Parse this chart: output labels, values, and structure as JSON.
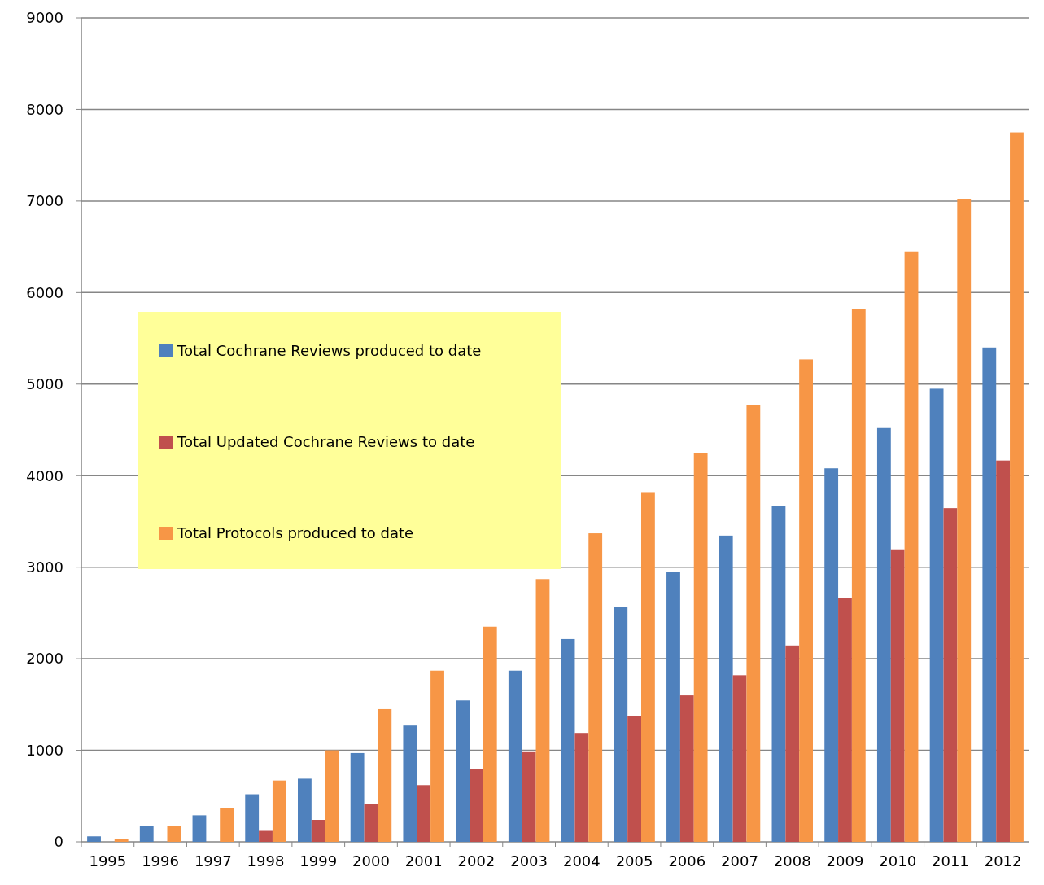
{
  "chart_data": {
    "type": "bar",
    "categories": [
      "1995",
      "1996",
      "1997",
      "1998",
      "1999",
      "2000",
      "2001",
      "2002",
      "2003",
      "2004",
      "2005",
      "2006",
      "2007",
      "2008",
      "2009",
      "2010",
      "2011",
      "2012"
    ],
    "series": [
      {
        "name": "Total Cochrane Reviews produced to date",
        "color": "#4f81bd",
        "values": [
          60,
          170,
          290,
          520,
          690,
          970,
          1270,
          1545,
          1870,
          2215,
          2570,
          2950,
          3345,
          3670,
          4080,
          4520,
          4950,
          5400
        ]
      },
      {
        "name": "Total Updated Cochrane Reviews to date",
        "color": "#c0504d",
        "values": [
          0,
          0,
          0,
          120,
          240,
          415,
          620,
          795,
          980,
          1190,
          1370,
          1600,
          1820,
          2145,
          2665,
          3195,
          3645,
          4165
        ]
      },
      {
        "name": "Total Protocols produced to date",
        "color": "#f79646",
        "values": [
          35,
          170,
          370,
          670,
          1000,
          1450,
          1870,
          2350,
          2870,
          3370,
          3820,
          4245,
          4775,
          5270,
          5825,
          6450,
          7025,
          7750
        ]
      }
    ],
    "ylim": [
      0,
      9000
    ],
    "yticks": [
      0,
      1000,
      2000,
      3000,
      4000,
      5000,
      6000,
      7000,
      8000,
      9000
    ],
    "grid": "y",
    "legend": "left"
  }
}
